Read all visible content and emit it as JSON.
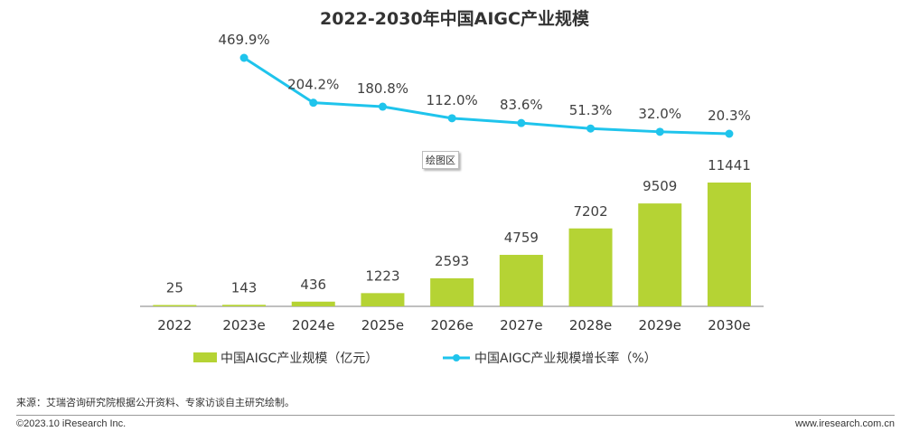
{
  "chart_data": {
    "type": "bar",
    "title": "2022-2030年中国AIGC产业规模",
    "categories": [
      "2022",
      "2023e",
      "2024e",
      "2025e",
      "2026e",
      "2027e",
      "2028e",
      "2029e",
      "2030e"
    ],
    "series": [
      {
        "name": "中国AIGC产业规模（亿元）",
        "kind": "bar",
        "color": "#b5d334",
        "values": [
          25,
          143,
          436,
          1223,
          2593,
          4759,
          7202,
          9509,
          11441
        ],
        "labels": [
          "25",
          "143",
          "436",
          "1223",
          "2593",
          "4759",
          "7202",
          "9509",
          "11441"
        ]
      },
      {
        "name": "中国AIGC产业规模增长率（%）",
        "kind": "line",
        "color": "#1fc4ec",
        "values": [
          null,
          469.9,
          204.2,
          180.8,
          112.0,
          83.6,
          51.3,
          32.0,
          20.3
        ],
        "labels": [
          null,
          "469.9%",
          "204.2%",
          "180.8%",
          "112.0%",
          "83.6%",
          "51.3%",
          "32.0%",
          "20.3%"
        ]
      }
    ],
    "legend_position": "bottom",
    "grid": false
  },
  "plot_area_tag": "绘图区",
  "footer": {
    "source": "来源：艾瑞咨询研究院根据公开资料、专家访谈自主研究绘制。",
    "copyright": "©2023.10 iResearch Inc.",
    "website": "www.iresearch.com.cn"
  }
}
